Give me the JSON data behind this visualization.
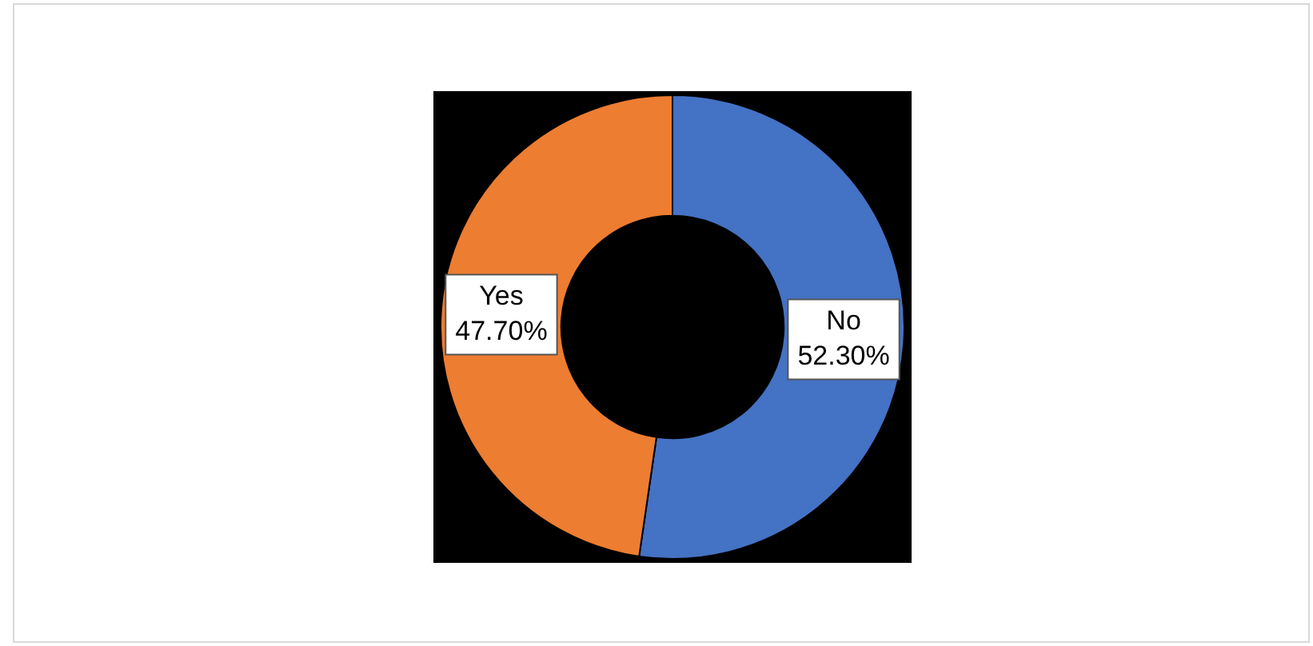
{
  "chart_data": {
    "type": "donut",
    "categories": [
      "No",
      "Yes"
    ],
    "values": [
      52.3,
      47.7
    ],
    "colors": [
      "#4472c4",
      "#ed7d31"
    ],
    "value_labels": [
      "52.30%",
      "47.70%"
    ],
    "legend": false
  }
}
